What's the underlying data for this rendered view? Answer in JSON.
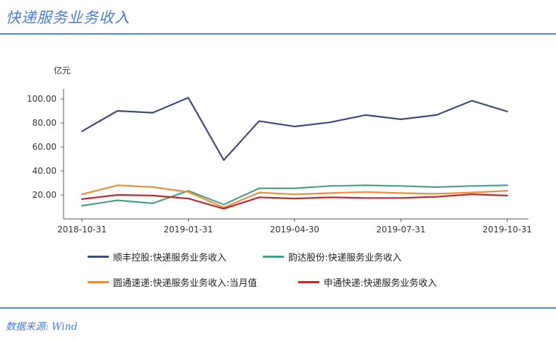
{
  "header": {
    "title": "快递服务业务收入"
  },
  "footer": {
    "source": "数据来源: Wind"
  },
  "chart_data": {
    "type": "line",
    "title": "快递服务业务收入",
    "unit_label": "亿元",
    "ylim": [
      0,
      110
    ],
    "yticks": [
      "20.00",
      "40.00",
      "60.00",
      "80.00",
      "100.00"
    ],
    "ytick_values": [
      20,
      40,
      60,
      80,
      100
    ],
    "x": [
      "2018-10-31",
      "2018-11-30",
      "2018-12-31",
      "2019-01-31",
      "2019-02-28",
      "2019-03-31",
      "2019-04-30",
      "2019-05-31",
      "2019-06-30",
      "2019-07-31",
      "2019-08-31",
      "2019-09-30",
      "2019-10-31"
    ],
    "xtick_labels": [
      "2018-10-31",
      "2019-01-31",
      "2019-04-30",
      "2019-07-31",
      "2019-10-31"
    ],
    "xtick_indices": [
      0,
      3,
      6,
      9,
      12
    ],
    "grid": false,
    "legend_position": "bottom",
    "series": [
      {
        "name": "顺丰控股:快递服务业务收入",
        "color": "#3c4a7e",
        "values": [
          73.0,
          90.0,
          88.5,
          101.0,
          49.0,
          81.5,
          77.0,
          80.5,
          86.5,
          83.0,
          86.5,
          98.5,
          89.5
        ]
      },
      {
        "name": "韵达股份:快递服务业务收入",
        "color": "#4a9e8c",
        "values": [
          11.0,
          15.5,
          13.0,
          23.5,
          12.0,
          25.5,
          25.5,
          27.5,
          28.0,
          27.5,
          26.5,
          27.5,
          28.0
        ]
      },
      {
        "name": "圆通速递:快递服务业务收入:当月值",
        "color": "#f08c3a",
        "values": [
          20.5,
          28.0,
          26.5,
          22.5,
          9.5,
          22.0,
          20.5,
          21.5,
          22.5,
          21.5,
          21.0,
          22.0,
          23.5
        ]
      },
      {
        "name": "申通快递:快递服务业务收入",
        "color": "#c0272d",
        "values": [
          16.5,
          20.0,
          19.5,
          17.0,
          8.5,
          18.0,
          17.0,
          18.0,
          17.5,
          17.5,
          18.5,
          20.5,
          19.5
        ]
      }
    ]
  }
}
